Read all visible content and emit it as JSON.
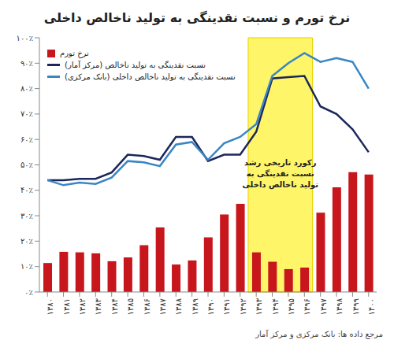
{
  "chart_data": {
    "type": "bar",
    "title": "نرخ تورم و نسبت نقدینگی به تولید ناخالص داخلی",
    "source": "مرجع داده ها: بانک مرکزی و مرکز آمار",
    "categories": [
      "۱۳۸۰",
      "۱۳۸۱",
      "۱۳۸۲",
      "۱۳۸۳",
      "۱۳۸۴",
      "۱۳۸۵",
      "۱۳۸۶",
      "۱۳۸۷",
      "۱۳۸۸",
      "۱۳۸۹",
      "۱۳۹۰",
      "۱۳۹۱",
      "۱۳۹۲",
      "۱۳۹۳",
      "۱۳۹۴",
      "۱۳۹۵",
      "۱۳۹۶",
      "۱۳۹۷",
      "۱۳۹۸",
      "۱۳۹۹",
      "۱۴۰۰"
    ],
    "series": [
      {
        "name": "نرخ تورم",
        "type": "bar",
        "color": "#c8161d",
        "marker": "square",
        "values": [
          11.4,
          15.8,
          15.6,
          15.2,
          12.1,
          13.6,
          18.4,
          25.4,
          10.8,
          12.4,
          21.5,
          30.5,
          34.7,
          15.6,
          11.9,
          9.0,
          9.6,
          31.2,
          41.2,
          47.1,
          46.2
        ]
      },
      {
        "name": "نسبت نقدینگی به تولید ناخالص (مرکز آمار)",
        "type": "line",
        "color": "#1c2759",
        "line_style": "solid",
        "values": [
          44,
          44,
          44.5,
          44.5,
          47,
          54,
          53.5,
          52,
          61,
          61,
          51.5,
          54,
          54,
          63,
          84,
          84.5,
          85,
          73,
          70,
          64,
          55
        ]
      },
      {
        "name": "نسبت نقدینگی به تولید ناخالص داخلی (بانک مرکزی)",
        "type": "line",
        "color": "#3a86c4",
        "line_style": "solid",
        "values": [
          44,
          42,
          43,
          42.5,
          45,
          51.5,
          51,
          49.5,
          58,
          59,
          52,
          58.5,
          61,
          66,
          85,
          90,
          94,
          90.5,
          92,
          90.5,
          80
        ]
      }
    ],
    "ylim": [
      0,
      100
    ],
    "yticks": [
      {
        "value": 0,
        "label": "۰٪"
      },
      {
        "value": 10,
        "label": "۱۰٪"
      },
      {
        "value": 20,
        "label": "۲۰٪"
      },
      {
        "value": 30,
        "label": "۳۰٪"
      },
      {
        "value": 40,
        "label": "۴۰٪"
      },
      {
        "value": 50,
        "label": "۵۰٪"
      },
      {
        "value": 60,
        "label": "۶۰٪"
      },
      {
        "value": 70,
        "label": "۷۰٪"
      },
      {
        "value": 80,
        "label": "۸۰٪"
      },
      {
        "value": 90,
        "label": "۹۰٪"
      },
      {
        "value": 100,
        "label": "۱۰۰٪"
      }
    ],
    "grid": false,
    "legend": "top-left",
    "annotations": [
      {
        "x_from": "۱۳۹۳",
        "x_to": "۱۳۹۶",
        "color": "#fff34d",
        "text": [
          "رکورد تاریخی رشد",
          "نسبت نقدینگی به",
          "تولید ناخالص داخلی"
        ]
      }
    ]
  }
}
